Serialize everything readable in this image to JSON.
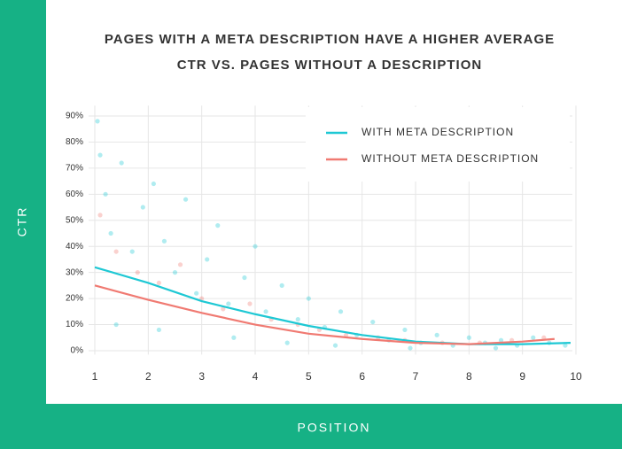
{
  "chart_data": {
    "type": "line",
    "title": [
      "PAGES WITH A META DESCRIPTION HAVE A HIGHER AVERAGE",
      "CTR VS. PAGES WITHOUT A DESCRIPTION"
    ],
    "x_label": "POSITION",
    "y_label": "CTR",
    "xlim": [
      1,
      10
    ],
    "xticks": [
      1,
      2,
      3,
      4,
      5,
      6,
      7,
      8,
      9,
      10
    ],
    "ylim": [
      -1.5,
      94
    ],
    "yticks": [
      {
        "value": 0,
        "label": "0%"
      },
      {
        "value": 10,
        "label": "10%"
      },
      {
        "value": 20,
        "label": "20%"
      },
      {
        "value": 30,
        "label": "30%"
      },
      {
        "value": 40,
        "label": "40%"
      },
      {
        "value": 50,
        "label": "50%"
      },
      {
        "value": 60,
        "label": "60%"
      },
      {
        "value": 70,
        "label": "70%"
      },
      {
        "value": 80,
        "label": "80%"
      },
      {
        "value": 90,
        "label": "90%"
      }
    ],
    "grid": true,
    "legend": "upper right",
    "series": [
      {
        "name": "WITH META DESCRIPTION",
        "color": "#1ec8d4",
        "x": [
          1,
          2,
          3,
          4,
          5,
          6,
          7,
          8,
          9,
          9.9
        ],
        "values": [
          32,
          26,
          19,
          14,
          9.5,
          6,
          3.5,
          2.5,
          2.5,
          3
        ]
      },
      {
        "name": "WITHOUT META DESCRIPTION",
        "color": "#f07a72",
        "x": [
          1,
          2,
          3,
          4,
          5,
          6,
          7,
          8,
          9,
          9.6
        ],
        "values": [
          25,
          19.5,
          14.5,
          10,
          6.5,
          4.5,
          3,
          2.5,
          3.5,
          4.5
        ]
      }
    ],
    "scatter": [
      {
        "color": "#1ec8d4",
        "x": [
          1.05,
          1.1,
          1.2,
          1.3,
          1.5,
          1.7,
          1.9,
          2.1,
          2.3,
          2.5,
          2.7,
          2.9,
          3.1,
          3.3,
          3.5,
          3.8,
          4.0,
          4.2,
          4.5,
          4.8,
          5.0,
          5.3,
          5.6,
          5.9,
          6.2,
          6.5,
          6.8,
          7.1,
          7.4,
          7.7,
          8.0,
          8.3,
          8.6,
          8.9,
          9.2,
          9.5,
          9.8,
          1.4,
          2.2,
          3.6,
          4.6,
          5.5,
          6.9,
          8.5
        ],
        "values": [
          88,
          75,
          60,
          45,
          72,
          38,
          55,
          64,
          42,
          30,
          58,
          22,
          35,
          48,
          18,
          28,
          40,
          15,
          25,
          12,
          20,
          9,
          15,
          6,
          11,
          4,
          8,
          3,
          6,
          2,
          5,
          3,
          4,
          2,
          5,
          3,
          2,
          10,
          8,
          5,
          3,
          2,
          1,
          1
        ]
      },
      {
        "color": "#f07a72",
        "x": [
          1.1,
          1.4,
          1.8,
          2.2,
          2.6,
          3.0,
          3.4,
          3.9,
          4.3,
          4.8,
          5.2,
          5.7,
          6.3,
          6.8,
          7.5,
          8.2,
          8.8,
          9.4
        ],
        "values": [
          52,
          38,
          30,
          26,
          33,
          20,
          16,
          18,
          12,
          10,
          8,
          6,
          5,
          4,
          3,
          3,
          4,
          5
        ]
      }
    ]
  }
}
